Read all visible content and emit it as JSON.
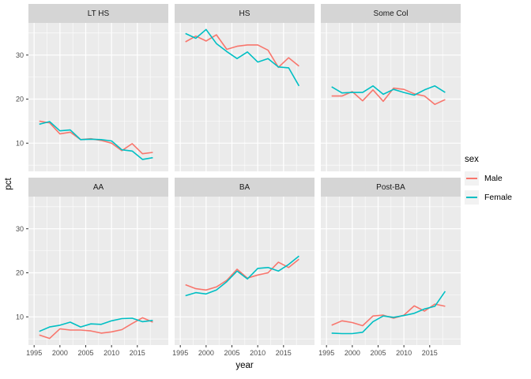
{
  "figure": {
    "y_axis_title": "pct",
    "x_axis_title": "year"
  },
  "legend": {
    "title": "sex",
    "items": [
      {
        "label": "Male",
        "color": "#F8766D"
      },
      {
        "label": "Female",
        "color": "#00BFC4"
      }
    ]
  },
  "theme": {
    "panel_background": "#EBEBEB",
    "strip_background": "#D5D5D5",
    "gridline_color": "#FFFFFF",
    "tick_color": "#333333",
    "tick_label_color": "#4D4D4D"
  },
  "chart_data": {
    "type": "line",
    "title": "",
    "xlabel": "year",
    "ylabel": "pct",
    "legend_title": "sex",
    "legend_position": "right",
    "grid": true,
    "x": [
      1996,
      1998,
      2000,
      2002,
      2004,
      2006,
      2008,
      2010,
      2012,
      2014,
      2016,
      2018
    ],
    "x_domain": [
      1993.9,
      2021.0
    ],
    "y_domain": [
      3.6,
      37.3
    ],
    "x_ticks": [
      1995,
      2000,
      2005,
      2010,
      2015
    ],
    "y_ticks": [
      10,
      20,
      30
    ],
    "x_minor": [
      1997.5,
      2002.5,
      2007.5,
      2012.5,
      2017.5
    ],
    "y_minor": [
      5,
      15,
      25,
      35
    ],
    "series_names": [
      "Male",
      "Female"
    ],
    "colors": {
      "Male": "#F8766D",
      "Female": "#00BFC4"
    },
    "facets": [
      {
        "label": "LT HS",
        "series": {
          "Male": [
            15.0,
            14.6,
            12.1,
            12.5,
            10.8,
            11.0,
            10.6,
            10.0,
            8.3,
            9.9,
            7.6,
            7.9
          ],
          "Female": [
            14.3,
            14.9,
            12.8,
            13.0,
            10.8,
            10.9,
            10.8,
            10.5,
            8.5,
            8.2,
            6.3,
            6.7
          ]
        }
      },
      {
        "label": "HS",
        "series": {
          "Male": [
            33.0,
            34.3,
            33.2,
            34.6,
            31.3,
            32.0,
            32.3,
            32.3,
            31.1,
            27.2,
            29.4,
            27.5
          ],
          "Female": [
            34.9,
            33.8,
            35.8,
            32.6,
            30.8,
            29.2,
            30.7,
            28.4,
            29.2,
            27.3,
            27.1,
            23.0
          ]
        }
      },
      {
        "label": "Some Col",
        "series": {
          "Male": [
            20.7,
            20.7,
            21.7,
            19.6,
            22.1,
            19.5,
            22.5,
            22.2,
            21.2,
            20.7,
            18.8,
            19.9
          ],
          "Female": [
            22.8,
            21.4,
            21.5,
            21.5,
            23.0,
            21.1,
            22.2,
            21.5,
            20.9,
            22.1,
            23.0,
            21.5
          ]
        }
      },
      {
        "label": "AA",
        "series": {
          "Male": [
            5.9,
            5.1,
            7.3,
            7.0,
            7.0,
            6.8,
            6.3,
            6.6,
            7.1,
            8.5,
            9.8,
            8.8
          ],
          "Female": [
            6.7,
            7.7,
            8.1,
            8.8,
            7.7,
            8.4,
            8.3,
            9.1,
            9.6,
            9.7,
            8.9,
            9.2
          ]
        }
      },
      {
        "label": "BA",
        "series": {
          "Male": [
            17.3,
            16.4,
            16.1,
            16.8,
            18.3,
            20.8,
            18.8,
            19.5,
            20.0,
            22.4,
            21.2,
            23.1
          ],
          "Female": [
            14.8,
            15.5,
            15.2,
            16.1,
            18.0,
            20.4,
            18.6,
            21.0,
            21.2,
            20.4,
            21.9,
            23.8
          ]
        }
      },
      {
        "label": "Post-BA",
        "series": {
          "Male": [
            8.1,
            9.1,
            8.7,
            8.0,
            10.2,
            10.4,
            9.7,
            10.4,
            12.5,
            11.3,
            12.9,
            12.4
          ],
          "Female": [
            6.3,
            6.2,
            6.2,
            6.5,
            8.9,
            10.2,
            9.9,
            10.3,
            10.8,
            11.8,
            12.4,
            15.8
          ]
        }
      }
    ]
  }
}
